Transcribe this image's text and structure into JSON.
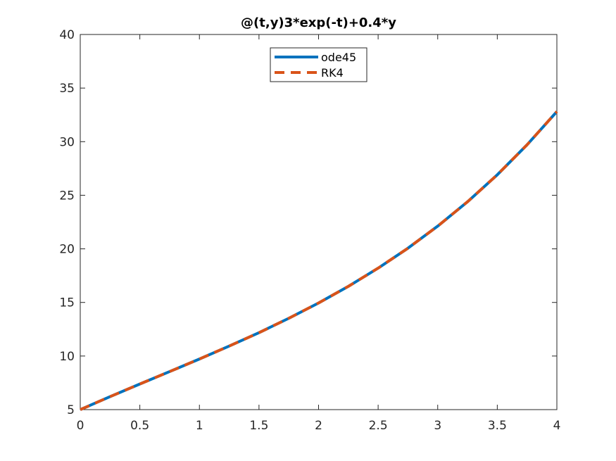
{
  "chart_data": {
    "type": "line",
    "title": "@(t,y)3*exp(-t)+0.4*y",
    "xlabel": "",
    "ylabel": "",
    "xlim": [
      0,
      4
    ],
    "ylim": [
      5,
      40
    ],
    "xticks": [
      0,
      0.5,
      1,
      1.5,
      2,
      2.5,
      3,
      3.5,
      4
    ],
    "xtick_labels": [
      "0",
      "0.5",
      "1",
      "1.5",
      "2",
      "2.5",
      "3",
      "3.5",
      "4"
    ],
    "yticks": [
      5,
      10,
      15,
      20,
      25,
      30,
      35,
      40
    ],
    "ytick_labels": [
      "5",
      "10",
      "15",
      "20",
      "25",
      "30",
      "35",
      "40"
    ],
    "grid": false,
    "legend_position": "top-center",
    "series": [
      {
        "name": "ode45",
        "color": "#0072BD",
        "line_style": "solid",
        "x": [
          0,
          0.25,
          0.5,
          0.75,
          1,
          1.25,
          1.5,
          1.75,
          2,
          2.25,
          2.5,
          2.75,
          3,
          3.25,
          3.5,
          3.75,
          4
        ],
        "y": [
          5.0,
          6.21,
          7.39,
          8.55,
          9.72,
          10.93,
          12.18,
          13.52,
          14.95,
          16.5,
          18.2,
          20.06,
          22.12,
          24.39,
          26.91,
          29.71,
          32.81
        ]
      },
      {
        "name": "RK4",
        "color": "#D95319",
        "line_style": "dashed",
        "x": [
          0,
          0.25,
          0.5,
          0.75,
          1,
          1.25,
          1.5,
          1.75,
          2,
          2.25,
          2.5,
          2.75,
          3,
          3.25,
          3.5,
          3.75,
          4
        ],
        "y": [
          5.0,
          6.21,
          7.39,
          8.55,
          9.72,
          10.93,
          12.18,
          13.52,
          14.95,
          16.5,
          18.2,
          20.06,
          22.12,
          24.39,
          26.91,
          29.71,
          32.81
        ]
      }
    ]
  }
}
